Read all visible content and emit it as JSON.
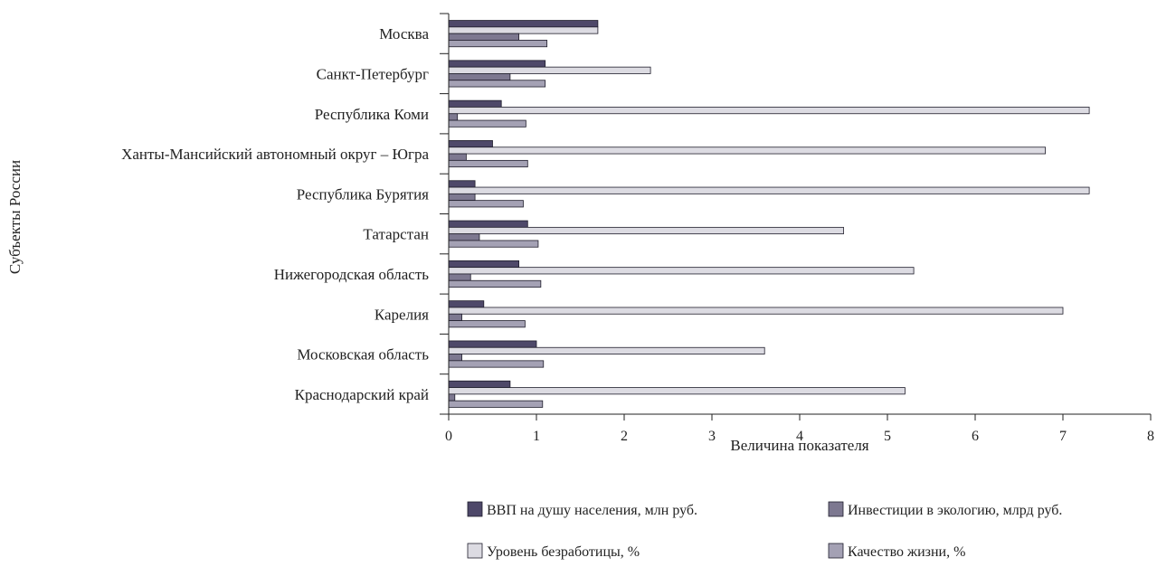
{
  "chart_data": {
    "type": "bar",
    "orientation": "horizontal",
    "categories": [
      "Москва",
      "Санкт-Петербург",
      "Республика Коми",
      "Ханты-Мансийский автономный округ – Югра",
      "Республика Бурятия",
      "Татарстан",
      "Нижегородская область",
      "Карелия",
      "Московская область",
      "Краснодарский край"
    ],
    "series": [
      {
        "name": "ВВП на душу населения, млн руб.",
        "color": "#4e4869",
        "values": [
          1.7,
          1.1,
          0.6,
          0.5,
          0.3,
          0.9,
          0.8,
          0.4,
          1.0,
          0.7
        ]
      },
      {
        "name": "Уровень безработицы, %",
        "color": "#dcdbe2",
        "values": [
          1.7,
          2.3,
          7.3,
          6.8,
          7.3,
          4.5,
          5.3,
          7.0,
          3.6,
          5.2
        ]
      },
      {
        "name": "Инвестиции в экологию, млрд руб.",
        "color": "#7d7890",
        "values": [
          0.8,
          0.7,
          0.1,
          0.2,
          0.3,
          0.35,
          0.25,
          0.15,
          0.15,
          0.07
        ]
      },
      {
        "name": "Качество жизни, %",
        "color": "#a4a1b4",
        "values": [
          1.12,
          1.1,
          0.88,
          0.9,
          0.85,
          1.02,
          1.05,
          0.87,
          1.08,
          1.07
        ]
      }
    ],
    "xlabel": "Величина показателя",
    "ylabel": "Субъекты России",
    "xlim": [
      0,
      8
    ],
    "xticks": [
      "0",
      "1",
      "2",
      "3",
      "4",
      "5",
      "6",
      "7",
      "8"
    ],
    "grid": false,
    "legend_position": "bottom"
  }
}
